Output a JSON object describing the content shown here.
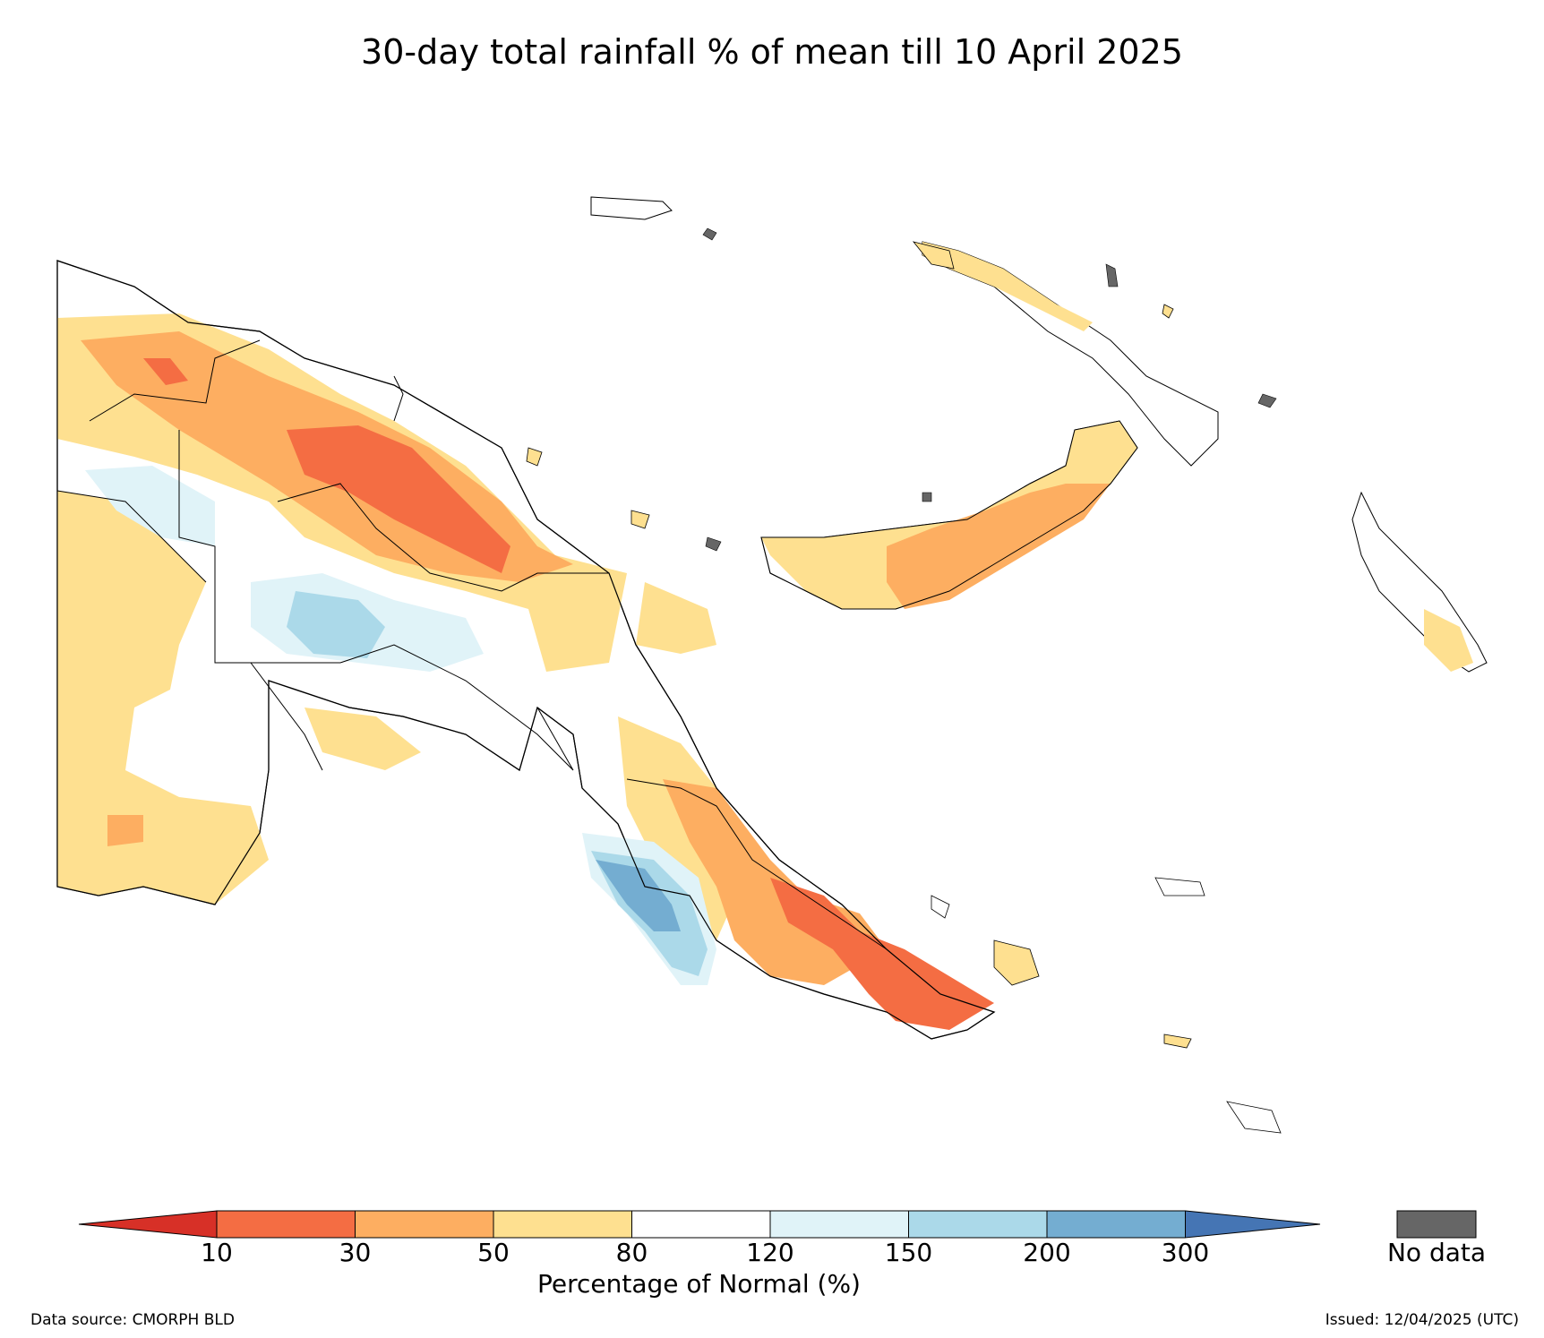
{
  "title": "30-day total rainfall % of mean till 10 April 2025",
  "colorbar": {
    "label": "Percentage of Normal (%)",
    "ticks": [
      "10",
      "30",
      "50",
      "80",
      "120",
      "150",
      "200",
      "300"
    ],
    "under_color": "#d73027",
    "over_color": "#4575b4",
    "bins": [
      {
        "range": "10-30",
        "color": "#f46d43"
      },
      {
        "range": "30-50",
        "color": "#fdae61"
      },
      {
        "range": "50-80",
        "color": "#fee090"
      },
      {
        "range": "80-120",
        "color": "#ffffff"
      },
      {
        "range": "120-150",
        "color": "#e0f3f8"
      },
      {
        "range": "150-200",
        "color": "#abd9e9"
      },
      {
        "range": "200-300",
        "color": "#74add1"
      }
    ]
  },
  "no_data": {
    "label": "No data",
    "color": "#666666"
  },
  "data_source": "Data source: CMORPH BLD",
  "issued": "Issued: 12/04/2025 (UTC)"
}
